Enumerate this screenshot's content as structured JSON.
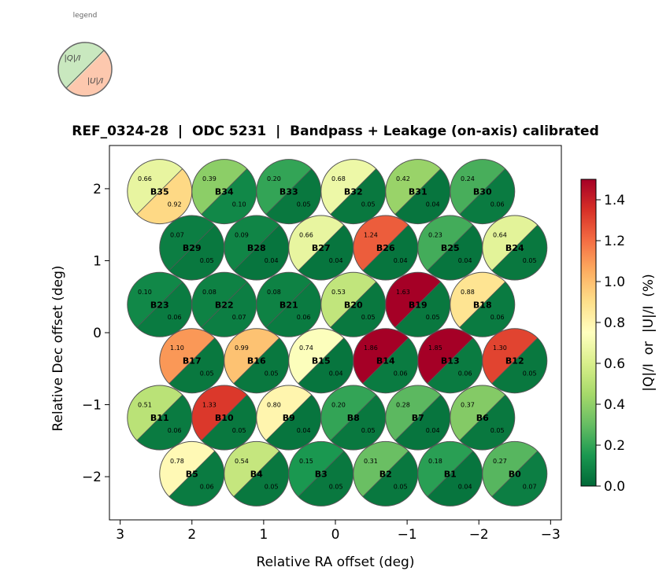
{
  "chart_data": {
    "type": "beam-footprint",
    "title": "REF_0324-28  |  ODC 5231  |  Bandpass + Leakage (on-axis) calibrated",
    "xlabel": "Relative RA offset (deg)",
    "ylabel": "Relative Dec offset (deg)",
    "xlim": [
      3.15,
      -3.15
    ],
    "ylim": [
      -2.6,
      2.6
    ],
    "xticks": [
      3,
      2,
      1,
      0,
      -1,
      -2,
      -3
    ],
    "yticks": [
      -2,
      -1,
      0,
      1,
      2
    ],
    "xtick_labels": [
      "3",
      "2",
      "1",
      "0",
      "−1",
      "−2",
      "−3"
    ],
    "ytick_labels": [
      "−2",
      "−1",
      "0",
      "1",
      "2"
    ],
    "beam_radius_deg": 0.45,
    "colorbar": {
      "label": "|Q|/I  or  |U|/I  (%)",
      "colormap": "RdYlGn_r",
      "min": 0.0,
      "max": 1.5,
      "ticks": [
        0.0,
        0.2,
        0.4,
        0.6,
        0.8,
        1.0,
        1.2,
        1.4
      ],
      "tick_labels": [
        "0.0",
        "0.2",
        "0.4",
        "0.6",
        "0.8",
        "1.0",
        "1.2",
        "1.4"
      ]
    },
    "legend": {
      "title": "legend",
      "upper_label": "|Q|/I",
      "lower_label": "|U|/I"
    },
    "beams": [
      {
        "name": "B35",
        "ra": 2.45,
        "dec": 1.96,
        "q": 0.66,
        "u": 0.92,
        "q_text": "0.66",
        "u_text": "0.92"
      },
      {
        "name": "B34",
        "ra": 1.55,
        "dec": 1.96,
        "q": 0.39,
        "u": 0.1,
        "q_text": "0.39",
        "u_text": "0.10"
      },
      {
        "name": "B33",
        "ra": 0.65,
        "dec": 1.96,
        "q": 0.2,
        "u": 0.05,
        "q_text": "0.20",
        "u_text": "0.05"
      },
      {
        "name": "B32",
        "ra": -0.25,
        "dec": 1.96,
        "q": 0.68,
        "u": 0.05,
        "q_text": "0.68",
        "u_text": "0.05"
      },
      {
        "name": "B31",
        "ra": -1.15,
        "dec": 1.96,
        "q": 0.42,
        "u": 0.04,
        "q_text": "0.42",
        "u_text": "0.04"
      },
      {
        "name": "B30",
        "ra": -2.05,
        "dec": 1.96,
        "q": 0.24,
        "u": 0.06,
        "q_text": "0.24",
        "u_text": "0.06"
      },
      {
        "name": "B29",
        "ra": 2.0,
        "dec": 1.18,
        "q": 0.07,
        "u": 0.05,
        "q_text": "0.07",
        "u_text": "0.05"
      },
      {
        "name": "B28",
        "ra": 1.1,
        "dec": 1.18,
        "q": 0.09,
        "u": 0.04,
        "q_text": "0.09",
        "u_text": "0.04"
      },
      {
        "name": "B27",
        "ra": 0.2,
        "dec": 1.18,
        "q": 0.66,
        "u": 0.04,
        "q_text": "0.66",
        "u_text": "0.04"
      },
      {
        "name": "B26",
        "ra": -0.7,
        "dec": 1.18,
        "q": 1.24,
        "u": 0.04,
        "q_text": "1.24",
        "u_text": "0.04"
      },
      {
        "name": "B25",
        "ra": -1.6,
        "dec": 1.18,
        "q": 0.23,
        "u": 0.04,
        "q_text": "0.23",
        "u_text": "0.04"
      },
      {
        "name": "B24",
        "ra": -2.5,
        "dec": 1.18,
        "q": 0.64,
        "u": 0.05,
        "q_text": "0.64",
        "u_text": "0.05"
      },
      {
        "name": "B23",
        "ra": 2.45,
        "dec": 0.39,
        "q": 0.1,
        "u": 0.06,
        "q_text": "0.10",
        "u_text": "0.06"
      },
      {
        "name": "B22",
        "ra": 1.55,
        "dec": 0.39,
        "q": 0.08,
        "u": 0.07,
        "q_text": "0.08",
        "u_text": "0.07"
      },
      {
        "name": "B21",
        "ra": 0.65,
        "dec": 0.39,
        "q": 0.08,
        "u": 0.06,
        "q_text": "0.08",
        "u_text": "0.06"
      },
      {
        "name": "B20",
        "ra": -0.25,
        "dec": 0.39,
        "q": 0.53,
        "u": 0.05,
        "q_text": "0.53",
        "u_text": "0.05"
      },
      {
        "name": "B19",
        "ra": -1.15,
        "dec": 0.39,
        "q": 1.63,
        "u": 0.05,
        "q_text": "1.63",
        "u_text": "0.05"
      },
      {
        "name": "B18",
        "ra": -2.05,
        "dec": 0.39,
        "q": 0.88,
        "u": 0.06,
        "q_text": "0.88",
        "u_text": "0.06"
      },
      {
        "name": "B17",
        "ra": 2.0,
        "dec": -0.39,
        "q": 1.1,
        "u": 0.05,
        "q_text": "1.10",
        "u_text": "0.05"
      },
      {
        "name": "B16",
        "ra": 1.1,
        "dec": -0.39,
        "q": 0.99,
        "u": 0.05,
        "q_text": "0.99",
        "u_text": "0.05"
      },
      {
        "name": "B15",
        "ra": 0.2,
        "dec": -0.39,
        "q": 0.74,
        "u": 0.04,
        "q_text": "0.74",
        "u_text": "0.04"
      },
      {
        "name": "B14",
        "ra": -0.7,
        "dec": -0.39,
        "q": 1.86,
        "u": 0.06,
        "q_text": "1.86",
        "u_text": "0.06"
      },
      {
        "name": "B13",
        "ra": -1.6,
        "dec": -0.39,
        "q": 1.85,
        "u": 0.06,
        "q_text": "1.85",
        "u_text": "0.06"
      },
      {
        "name": "B12",
        "ra": -2.5,
        "dec": -0.39,
        "q": 1.3,
        "u": 0.05,
        "q_text": "1.30",
        "u_text": "0.05"
      },
      {
        "name": "B11",
        "ra": 2.45,
        "dec": -1.18,
        "q": 0.51,
        "u": 0.06,
        "q_text": "0.51",
        "u_text": "0.06"
      },
      {
        "name": "B10",
        "ra": 1.55,
        "dec": -1.18,
        "q": 1.33,
        "u": 0.05,
        "q_text": "1.33",
        "u_text": "0.05"
      },
      {
        "name": "B9",
        "ra": 0.65,
        "dec": -1.18,
        "q": 0.8,
        "u": 0.04,
        "q_text": "0.80",
        "u_text": "0.04"
      },
      {
        "name": "B8",
        "ra": -0.25,
        "dec": -1.18,
        "q": 0.2,
        "u": 0.05,
        "q_text": "0.20",
        "u_text": "0.05"
      },
      {
        "name": "B7",
        "ra": -1.15,
        "dec": -1.18,
        "q": 0.28,
        "u": 0.04,
        "q_text": "0.28",
        "u_text": "0.04"
      },
      {
        "name": "B6",
        "ra": -2.05,
        "dec": -1.18,
        "q": 0.37,
        "u": 0.05,
        "q_text": "0.37",
        "u_text": "0.05"
      },
      {
        "name": "B5",
        "ra": 2.0,
        "dec": -1.96,
        "q": 0.78,
        "u": 0.06,
        "q_text": "0.78",
        "u_text": "0.06"
      },
      {
        "name": "B4",
        "ra": 1.1,
        "dec": -1.96,
        "q": 0.54,
        "u": 0.05,
        "q_text": "0.54",
        "u_text": "0.05"
      },
      {
        "name": "B3",
        "ra": 0.2,
        "dec": -1.96,
        "q": 0.15,
        "u": 0.05,
        "q_text": "0.15",
        "u_text": "0.05"
      },
      {
        "name": "B2",
        "ra": -0.7,
        "dec": -1.96,
        "q": 0.31,
        "u": 0.05,
        "q_text": "0.31",
        "u_text": "0.05"
      },
      {
        "name": "B1",
        "ra": -1.6,
        "dec": -1.96,
        "q": 0.18,
        "u": 0.04,
        "q_text": "0.18",
        "u_text": "0.04"
      },
      {
        "name": "B0",
        "ra": -2.5,
        "dec": -1.96,
        "q": 0.27,
        "u": 0.07,
        "q_text": "0.27",
        "u_text": "0.07"
      }
    ]
  }
}
